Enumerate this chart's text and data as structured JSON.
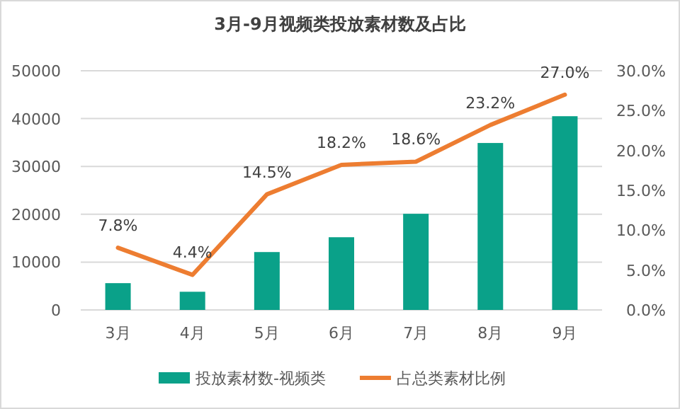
{
  "chart_data": {
    "type": "bar",
    "title": "3月-9月视频类投放素材数及占比",
    "categories": [
      "3月",
      "4月",
      "5月",
      "6月",
      "7月",
      "8月",
      "9月"
    ],
    "series": [
      {
        "name": "投放素材数-视频类",
        "color": "#0aa189",
        "values": [
          5600,
          3800,
          12100,
          15200,
          20100,
          34900,
          40500
        ]
      },
      {
        "name": "占总类素材比例",
        "type": "line",
        "axis": "y2",
        "color": "#ed7d31",
        "marker": "none",
        "values": [
          7.8,
          4.4,
          14.5,
          18.2,
          18.6,
          23.2,
          27.0
        ],
        "value_labels": [
          "7.8%",
          "4.4%",
          "14.5%",
          "18.2%",
          "18.6%",
          "23.2%",
          "27.0%"
        ]
      }
    ],
    "ylim": [
      0,
      50000
    ],
    "yticks": [
      0,
      10000,
      20000,
      30000,
      40000,
      50000
    ],
    "y2lim": [
      0,
      30
    ],
    "y2ticks": [
      {
        "value": 0,
        "label": "0.0%"
      },
      {
        "value": 5,
        "label": "5.0%"
      },
      {
        "value": 10,
        "label": "10.0%"
      },
      {
        "value": 15,
        "label": "15.0%"
      },
      {
        "value": 20,
        "label": "20.0%"
      },
      {
        "value": 25,
        "label": "25.0%"
      },
      {
        "value": 30,
        "label": "30.0%"
      }
    ],
    "grid": "y",
    "legend": "bottom"
  }
}
